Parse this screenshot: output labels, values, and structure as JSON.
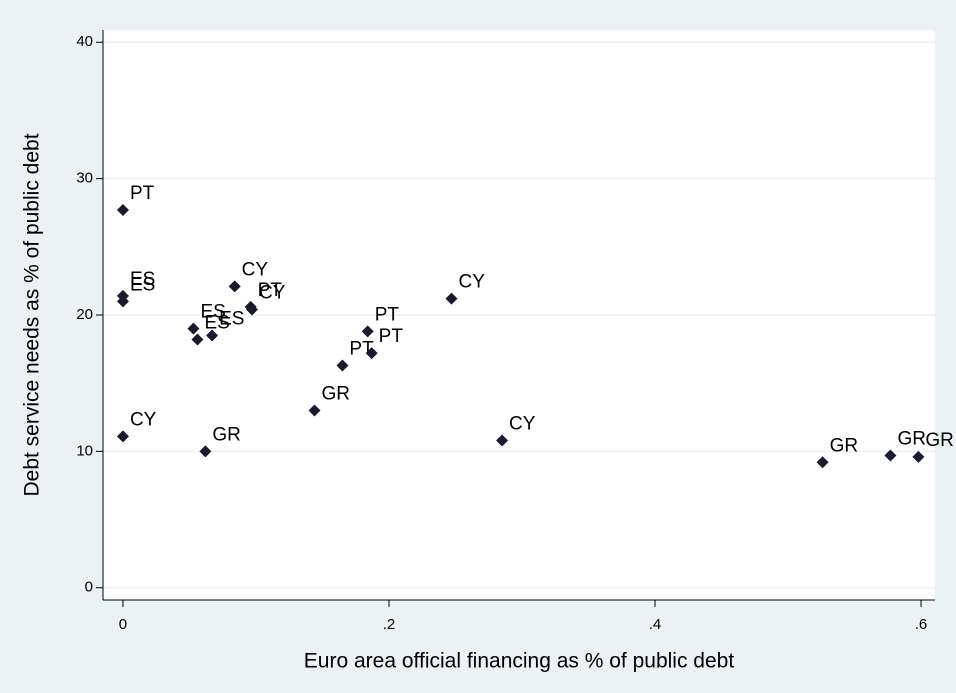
{
  "chart_data": {
    "type": "scatter",
    "x_label": "Euro area official financing as % of public debt",
    "y_label": "Debt service needs as % of public debt",
    "x": [
      0,
      0,
      0,
      0,
      0.084,
      0.096,
      0.097,
      0.247,
      0.067,
      0.053,
      0.056,
      0.165,
      0.184,
      0.187,
      0.144,
      0.062,
      0.285,
      0.526,
      0.577,
      0.598
    ],
    "y": [
      27.7,
      21.4,
      21.0,
      11.1,
      22.1,
      20.6,
      20.4,
      21.2,
      18.5,
      19.0,
      18.2,
      16.3,
      18.8,
      17.2,
      13.0,
      10.0,
      10.8,
      9.2,
      9.7,
      9.6
    ],
    "labels": [
      "PT",
      "ES",
      "ES",
      "CY",
      "CY",
      "PT",
      "CY",
      "CY",
      "ES",
      "ES",
      "ES",
      "PT",
      "PT",
      "PT",
      "GR",
      "GR",
      "CY",
      "GR",
      "GR",
      "GR"
    ],
    "color": "#1a1a2e",
    "xlim": [
      -0.015,
      0.6105
    ],
    "ylim": [
      -0.9,
      40.9
    ],
    "xticks": [
      0,
      {
        "value": 0.2,
        "label": ".2"
      },
      {
        "value": 0.4,
        "label": ".4"
      },
      {
        "value": 0.6,
        "label": ".6"
      }
    ],
    "yticks": [
      0,
      10,
      20,
      30,
      40
    ],
    "grid": true
  }
}
